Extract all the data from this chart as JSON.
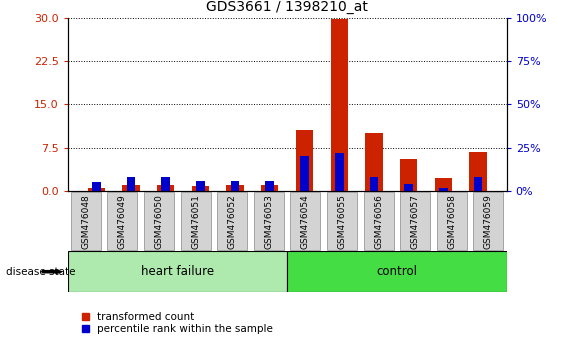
{
  "title": "GDS3661 / 1398210_at",
  "samples": [
    "GSM476048",
    "GSM476049",
    "GSM476050",
    "GSM476051",
    "GSM476052",
    "GSM476053",
    "GSM476054",
    "GSM476055",
    "GSM476056",
    "GSM476057",
    "GSM476058",
    "GSM476059"
  ],
  "groups": [
    "heart failure",
    "heart failure",
    "heart failure",
    "heart failure",
    "heart failure",
    "heart failure",
    "control",
    "control",
    "control",
    "control",
    "control",
    "control"
  ],
  "red_values": [
    0.6,
    1.0,
    1.1,
    0.9,
    1.1,
    1.1,
    10.5,
    29.8,
    10.0,
    5.5,
    2.2,
    6.8
  ],
  "blue_values_pct": [
    5,
    8,
    8,
    6,
    6,
    6,
    20,
    22,
    8,
    4,
    2,
    8
  ],
  "ylim_left": [
    0,
    30
  ],
  "ylim_right": [
    0,
    100
  ],
  "yticks_left": [
    0,
    7.5,
    15,
    22.5,
    30
  ],
  "yticks_right": [
    0,
    25,
    50,
    75,
    100
  ],
  "group_colors": {
    "heart failure": "#aeeaae",
    "control": "#44dd44"
  },
  "bar_color_red": "#cc2200",
  "bar_color_blue": "#0000cc",
  "legend_labels": [
    "transformed count",
    "percentile rank within the sample"
  ],
  "disease_state_label": "disease state",
  "background_color": "#ffffff",
  "plot_bg_color": "#ffffff",
  "left_ytick_color": "#cc2200",
  "right_ytick_color": "#0000cc"
}
